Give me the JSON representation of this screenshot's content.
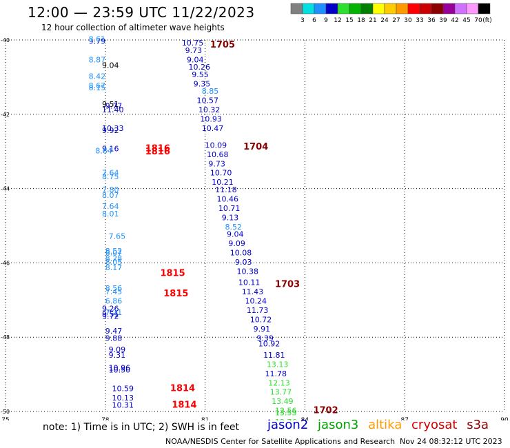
{
  "header": {
    "title": "12:00 — 23:59 UTC 11/22/2023",
    "subtitle": "12 hour collection of altimeter wave heights"
  },
  "colorbar": {
    "labels": [
      "3",
      "6",
      "9",
      "12",
      "15",
      "18",
      "21",
      "24",
      "27",
      "30",
      "33",
      "36",
      "39",
      "42",
      "45",
      "70"
    ],
    "unit": "(ft)",
    "colors": [
      "#808080",
      "#00e0e0",
      "#1e90ff",
      "#0000c8",
      "#2ee02e",
      "#00b400",
      "#008000",
      "#ffff00",
      "#ffcc00",
      "#ff9900",
      "#ff0000",
      "#cc0000",
      "#8b0000",
      "#990099",
      "#d070ff",
      "#ff99ff",
      "#000000"
    ]
  },
  "footer": {
    "note": "note:  1) Time is in UTC;  2) SWH is in feet",
    "legend": [
      {
        "name": "jason2",
        "color": "#0000c8"
      },
      {
        "name": "jason3",
        "color": "#00a000"
      },
      {
        "name": "altika",
        "color": "#ff9900"
      },
      {
        "name": "cryosat",
        "color": "#cc0000"
      },
      {
        "name": "s3a",
        "color": "#8b0000"
      }
    ],
    "credit": "NOAA/NESDIS Center for Satellite Applications and Research",
    "timestamp": "Nov 24 08:32:12 UTC 2023"
  },
  "chart_data": {
    "type": "scatter",
    "xlim": [
      75,
      90
    ],
    "ylim": [
      -50,
      -40
    ],
    "x_ticks": [
      75,
      78,
      81,
      84,
      87,
      90
    ],
    "y_ticks": [
      -40,
      -42,
      -44,
      -46,
      -48,
      -50
    ],
    "series": [
      {
        "color": "#000000",
        "points": [
          {
            "x": 77.9,
            "y": -41.8,
            "v": "9.51"
          },
          {
            "x": 77.9,
            "y": -40.75,
            "v": "9.04"
          }
        ]
      },
      {
        "color": "#0000c8",
        "points": [
          {
            "x": 77.5,
            "y": -40.1,
            "v": "9.79"
          },
          {
            "x": 78.0,
            "y": -41.85,
            "v": "9.77"
          },
          {
            "x": 77.9,
            "y": -41.95,
            "v": "11.40"
          },
          {
            "x": 77.9,
            "y": -42.45,
            "v": "10.33"
          },
          {
            "x": 77.9,
            "y": -42.5,
            "v": "9.92"
          },
          {
            "x": 77.9,
            "y": -43.0,
            "v": "9.16"
          },
          {
            "x": 77.9,
            "y": -47.3,
            "v": "9.26"
          },
          {
            "x": 77.9,
            "y": -47.45,
            "v": "9.51"
          },
          {
            "x": 77.9,
            "y": -47.5,
            "v": "9.72"
          },
          {
            "x": 78.0,
            "y": -47.9,
            "v": "9.47"
          },
          {
            "x": 78.0,
            "y": -48.1,
            "v": "9.88"
          },
          {
            "x": 78.1,
            "y": -48.4,
            "v": "9.09"
          },
          {
            "x": 78.1,
            "y": -48.55,
            "v": "9.31"
          },
          {
            "x": 78.1,
            "y": -48.9,
            "v": "10.96"
          },
          {
            "x": 78.1,
            "y": -48.95,
            "v": "10.50"
          },
          {
            "x": 78.2,
            "y": -49.45,
            "v": "10.59"
          },
          {
            "x": 78.2,
            "y": -49.7,
            "v": "10.13"
          },
          {
            "x": 78.2,
            "y": -49.9,
            "v": "10.31"
          },
          {
            "x": 80.3,
            "y": -40.15,
            "v": "10.75"
          },
          {
            "x": 80.4,
            "y": -40.35,
            "v": "9.73"
          },
          {
            "x": 80.45,
            "y": -40.6,
            "v": "9.04"
          },
          {
            "x": 80.5,
            "y": -40.8,
            "v": "10.26"
          },
          {
            "x": 80.6,
            "y": -41.0,
            "v": "9.55"
          },
          {
            "x": 80.65,
            "y": -41.25,
            "v": "9.35"
          },
          {
            "x": 80.75,
            "y": -41.7,
            "v": "10.57"
          },
          {
            "x": 80.8,
            "y": -41.95,
            "v": "10.32"
          },
          {
            "x": 80.85,
            "y": -42.2,
            "v": "10.93"
          },
          {
            "x": 80.9,
            "y": -42.45,
            "v": "10.47"
          },
          {
            "x": 81.0,
            "y": -42.9,
            "v": "10.09"
          },
          {
            "x": 81.05,
            "y": -43.15,
            "v": "10.68"
          },
          {
            "x": 81.1,
            "y": -43.4,
            "v": "9.73"
          },
          {
            "x": 81.15,
            "y": -43.65,
            "v": "10.70"
          },
          {
            "x": 81.2,
            "y": -43.9,
            "v": "10.21"
          },
          {
            "x": 81.3,
            "y": -44.1,
            "v": "11.18"
          },
          {
            "x": 81.35,
            "y": -44.35,
            "v": "10.46"
          },
          {
            "x": 81.4,
            "y": -44.6,
            "v": "10.71"
          },
          {
            "x": 81.5,
            "y": -44.85,
            "v": "9.13"
          },
          {
            "x": 81.65,
            "y": -45.3,
            "v": "9.04"
          },
          {
            "x": 81.7,
            "y": -45.55,
            "v": "9.09"
          },
          {
            "x": 81.75,
            "y": -45.8,
            "v": "10.08"
          },
          {
            "x": 81.9,
            "y": -46.05,
            "v": "9.03"
          },
          {
            "x": 81.95,
            "y": -46.3,
            "v": "10.38"
          },
          {
            "x": 82.0,
            "y": -46.6,
            "v": "10.11"
          },
          {
            "x": 82.1,
            "y": -46.85,
            "v": "11.43"
          },
          {
            "x": 82.2,
            "y": -47.1,
            "v": "10.24"
          },
          {
            "x": 82.25,
            "y": -47.35,
            "v": "11.73"
          },
          {
            "x": 82.35,
            "y": -47.6,
            "v": "10.72"
          },
          {
            "x": 82.45,
            "y": -47.85,
            "v": "9.91"
          },
          {
            "x": 82.55,
            "y": -48.1,
            "v": "9.39"
          },
          {
            "x": 82.6,
            "y": -48.25,
            "v": "10.92"
          },
          {
            "x": 82.75,
            "y": -48.55,
            "v": "11.81"
          },
          {
            "x": 82.8,
            "y": -49.05,
            "v": "11.78"
          }
        ]
      },
      {
        "color": "#1e90ff",
        "points": [
          {
            "x": 77.5,
            "y": -40.05,
            "v": "8.61"
          },
          {
            "x": 77.5,
            "y": -40.6,
            "v": "8.87"
          },
          {
            "x": 77.5,
            "y": -41.05,
            "v": "8.42"
          },
          {
            "x": 77.5,
            "y": -41.3,
            "v": "8.67"
          },
          {
            "x": 77.5,
            "y": -41.35,
            "v": "8.15"
          },
          {
            "x": 77.7,
            "y": -43.05,
            "v": "8.84"
          },
          {
            "x": 77.9,
            "y": -43.65,
            "v": "7.64"
          },
          {
            "x": 77.9,
            "y": -43.75,
            "v": "8.75"
          },
          {
            "x": 77.9,
            "y": -44.1,
            "v": "7.80"
          },
          {
            "x": 77.9,
            "y": -44.25,
            "v": "8.07"
          },
          {
            "x": 77.9,
            "y": -44.55,
            "v": "7.64"
          },
          {
            "x": 77.9,
            "y": -44.75,
            "v": "8.01"
          },
          {
            "x": 78.1,
            "y": -45.35,
            "v": "7.65"
          },
          {
            "x": 78.0,
            "y": -45.75,
            "v": "8.52"
          },
          {
            "x": 78.0,
            "y": -45.8,
            "v": "8.07"
          },
          {
            "x": 78.0,
            "y": -45.95,
            "v": "8.28"
          },
          {
            "x": 78.0,
            "y": -46.05,
            "v": "8.05"
          },
          {
            "x": 78.0,
            "y": -46.2,
            "v": "8.17"
          },
          {
            "x": 78.0,
            "y": -46.75,
            "v": "8.56"
          },
          {
            "x": 78.0,
            "y": -46.85,
            "v": "7.45"
          },
          {
            "x": 78.0,
            "y": -47.1,
            "v": "6.86"
          },
          {
            "x": 78.0,
            "y": -47.4,
            "v": "7.21"
          },
          {
            "x": 80.9,
            "y": -41.45,
            "v": "8.85"
          },
          {
            "x": 81.6,
            "y": -45.1,
            "v": "8.52"
          }
        ]
      },
      {
        "color": "#2ee02e",
        "points": [
          {
            "x": 82.85,
            "y": -48.8,
            "v": "13.13"
          },
          {
            "x": 82.9,
            "y": -49.3,
            "v": "12.13"
          },
          {
            "x": 82.95,
            "y": -49.55,
            "v": "13.77"
          },
          {
            "x": 83.0,
            "y": -49.8,
            "v": "13.49"
          },
          {
            "x": 83.1,
            "y": -50.05,
            "v": "12.56"
          },
          {
            "x": 83.1,
            "y": -50.1,
            "v": "13.55"
          },
          {
            "x": 83.1,
            "y": -50.35,
            "v": "12.76"
          }
        ]
      }
    ],
    "markers": [
      {
        "x": 81.15,
        "y": -40.2,
        "label": "1705",
        "color": "#8b0000"
      },
      {
        "x": 82.15,
        "y": -42.95,
        "label": "1704",
        "color": "#8b0000"
      },
      {
        "x": 83.1,
        "y": -46.65,
        "label": "1703",
        "color": "#8b0000"
      },
      {
        "x": 84.25,
        "y": -50.05,
        "label": "1702",
        "color": "#8b0000"
      },
      {
        "x": 79.2,
        "y": -43.0,
        "label": "1816",
        "color": "#ff0000"
      },
      {
        "x": 79.2,
        "y": -43.08,
        "label": "1816",
        "color": "#ff0000"
      },
      {
        "x": 79.65,
        "y": -46.35,
        "label": "1815",
        "color": "#ff0000"
      },
      {
        "x": 79.75,
        "y": -46.9,
        "label": "1815",
        "color": "#ff0000"
      },
      {
        "x": 79.95,
        "y": -49.45,
        "label": "1814",
        "color": "#ff0000"
      },
      {
        "x": 80.0,
        "y": -49.9,
        "label": "1814",
        "color": "#ff0000"
      }
    ]
  }
}
